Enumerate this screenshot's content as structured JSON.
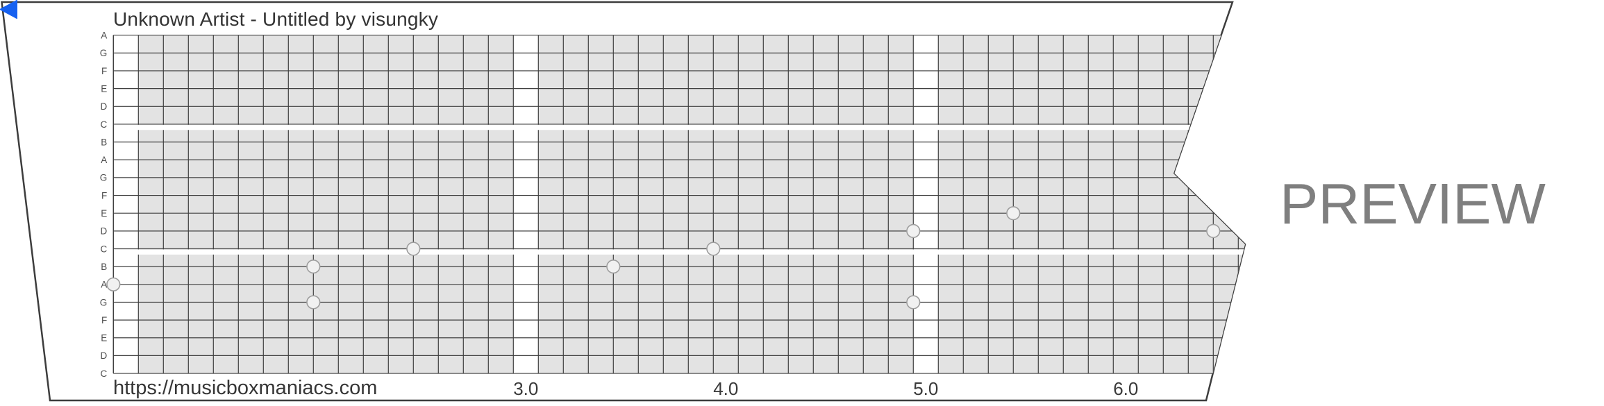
{
  "header": {
    "title": "Unknown Artist - Untitled by visungky"
  },
  "footer": {
    "url": "https://musicboxmaniacs.com"
  },
  "watermark": "PREVIEW",
  "play_icon": {
    "name": "play-back-triangle",
    "color": "#1661f0"
  },
  "colors": {
    "paper_border": "#3d3d3d",
    "grid_fill": "#e3e3e3",
    "grid_line": "#3f3f3f",
    "note_fill": "#f1f1f1",
    "note_stroke": "#9e9e9e",
    "text": "#333333",
    "row_label": "#4d4d4d",
    "watermark_gray": "#7f7f7f",
    "accent_blue": "#1661f0"
  },
  "chart_data": {
    "type": "piano-roll",
    "title": "Unknown Artist - Untitled by visungky",
    "note_rows": [
      "A",
      "G",
      "F",
      "E",
      "D",
      "C",
      "B",
      "A",
      "G",
      "F",
      "E",
      "D",
      "C",
      "B",
      "A",
      "G",
      "F",
      "E",
      "D",
      "C"
    ],
    "octave_breaks_after_rows": [
      5,
      12
    ],
    "time_start": 1.0,
    "columns_per_time_unit": 8,
    "white_measure_columns": [
      0,
      16,
      32
    ],
    "time_markers": [
      {
        "label": "3.0",
        "time": 3.0
      },
      {
        "label": "4.0",
        "time": 4.0
      },
      {
        "label": "5.0",
        "time": 5.0
      },
      {
        "label": "6.0",
        "time": 6.0
      }
    ],
    "notes": [
      {
        "note": "A",
        "row": 14,
        "time": 1.0
      },
      {
        "note": "B",
        "row": 13,
        "time": 2.0
      },
      {
        "note": "G",
        "row": 15,
        "time": 2.0
      },
      {
        "note": "C",
        "row": 12,
        "time": 2.5
      },
      {
        "note": "B",
        "row": 13,
        "time": 3.5
      },
      {
        "note": "C",
        "row": 12,
        "time": 4.0
      },
      {
        "note": "D",
        "row": 11,
        "time": 5.0
      },
      {
        "note": "G",
        "row": 15,
        "time": 5.0
      },
      {
        "note": "E",
        "row": 10,
        "time": 5.5
      },
      {
        "note": "D",
        "row": 11,
        "time": 6.5
      }
    ],
    "grid": "on",
    "legend": "none"
  }
}
